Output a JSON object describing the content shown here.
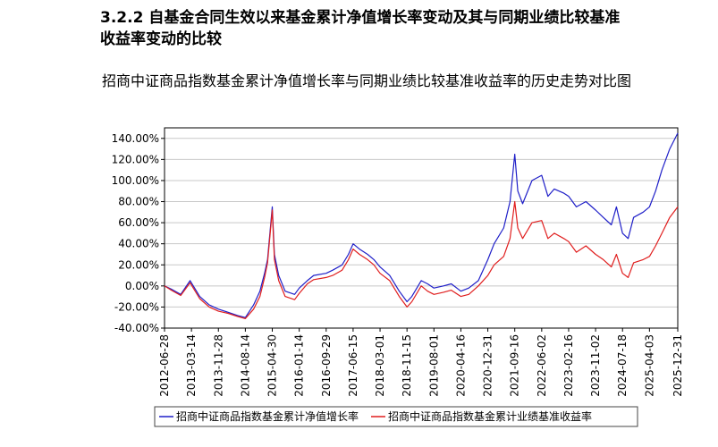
{
  "section": {
    "heading_line1": "3.2.2  自基金合同生效以来基金累计净值增长率变动及其与同期业绩比较基准",
    "heading_line2": "收益率变动的比较"
  },
  "colors": {
    "fund": "#1f1fc8",
    "benchmark": "#e01e1e",
    "grid": "#c8c8c8",
    "axis": "#000000"
  },
  "chart_data": {
    "type": "line",
    "title": "招商中证商品指数基金累计净值增长率与同期业绩比较基准收益率的历史走势对比图",
    "xlabel": "",
    "ylabel": "",
    "x_axis": {
      "type": "date",
      "min": "2012-06-28",
      "max": "2025-12-31",
      "tick_labels": [
        "2012-06-28",
        "2013-03-14",
        "2013-11-28",
        "2014-08-14",
        "2015-04-30",
        "2016-01-14",
        "2016-09-29",
        "2017-06-15",
        "2018-03-01",
        "2018-11-15",
        "2019-08-01",
        "2020-04-16",
        "2020-12-31",
        "2021-09-16",
        "2022-06-02",
        "2023-02-16",
        "2023-11-02",
        "2024-07-18",
        "2025-04-03",
        "2025-12-31"
      ]
    },
    "y_axis": {
      "min": -40,
      "max": 150,
      "unit": "%",
      "ticks": [
        -40,
        -20,
        0,
        20,
        40,
        60,
        80,
        100,
        120,
        140
      ],
      "tick_labels": [
        "-40.00%",
        "-20.00%",
        "0.00%",
        "20.00%",
        "40.00%",
        "60.00%",
        "80.00%",
        "100.00%",
        "120.00%",
        "140.00%"
      ]
    },
    "grid": "horizontal",
    "legend_position": "bottom",
    "series": [
      {
        "name": "招商中证商品指数基金累计净值增长率",
        "color": "#1f1fc8",
        "points": [
          [
            "2012-06-28",
            0
          ],
          [
            "2012-09-01",
            -3
          ],
          [
            "2012-12-01",
            -8
          ],
          [
            "2013-03-01",
            5
          ],
          [
            "2013-06-01",
            -10
          ],
          [
            "2013-09-01",
            -18
          ],
          [
            "2013-11-28",
            -22
          ],
          [
            "2014-03-01",
            -25
          ],
          [
            "2014-06-01",
            -28
          ],
          [
            "2014-08-14",
            -30
          ],
          [
            "2014-11-01",
            -18
          ],
          [
            "2015-01-01",
            -5
          ],
          [
            "2015-02-15",
            12
          ],
          [
            "2015-03-15",
            25
          ],
          [
            "2015-04-30",
            75
          ],
          [
            "2015-05-20",
            30
          ],
          [
            "2015-07-01",
            10
          ],
          [
            "2015-09-01",
            -5
          ],
          [
            "2015-12-01",
            -8
          ],
          [
            "2016-01-14",
            -2
          ],
          [
            "2016-04-01",
            5
          ],
          [
            "2016-06-01",
            10
          ],
          [
            "2016-09-29",
            12
          ],
          [
            "2016-12-01",
            15
          ],
          [
            "2017-03-01",
            20
          ],
          [
            "2017-05-01",
            30
          ],
          [
            "2017-06-15",
            40
          ],
          [
            "2017-08-15",
            35
          ],
          [
            "2017-11-01",
            30
          ],
          [
            "2018-01-01",
            25
          ],
          [
            "2018-03-01",
            18
          ],
          [
            "2018-06-01",
            10
          ],
          [
            "2018-09-01",
            -5
          ],
          [
            "2018-11-15",
            -15
          ],
          [
            "2019-01-01",
            -10
          ],
          [
            "2019-04-01",
            5
          ],
          [
            "2019-06-01",
            2
          ],
          [
            "2019-08-01",
            -2
          ],
          [
            "2019-11-01",
            0
          ],
          [
            "2020-01-15",
            2
          ],
          [
            "2020-04-16",
            -5
          ],
          [
            "2020-07-01",
            -2
          ],
          [
            "2020-10-01",
            5
          ],
          [
            "2020-12-31",
            25
          ],
          [
            "2021-03-01",
            40
          ],
          [
            "2021-06-01",
            55
          ],
          [
            "2021-08-01",
            80
          ],
          [
            "2021-09-16",
            125
          ],
          [
            "2021-10-15",
            90
          ],
          [
            "2021-12-01",
            78
          ],
          [
            "2022-03-01",
            100
          ],
          [
            "2022-06-02",
            105
          ],
          [
            "2022-08-01",
            85
          ],
          [
            "2022-10-01",
            92
          ],
          [
            "2023-01-01",
            88
          ],
          [
            "2023-02-16",
            85
          ],
          [
            "2023-05-01",
            75
          ],
          [
            "2023-08-01",
            80
          ],
          [
            "2023-11-02",
            72
          ],
          [
            "2024-01-15",
            65
          ],
          [
            "2024-04-01",
            58
          ],
          [
            "2024-05-20",
            75
          ],
          [
            "2024-07-18",
            50
          ],
          [
            "2024-09-10",
            45
          ],
          [
            "2024-11-01",
            65
          ],
          [
            "2025-02-01",
            70
          ],
          [
            "2025-04-03",
            75
          ],
          [
            "2025-06-01",
            90
          ],
          [
            "2025-08-01",
            110
          ],
          [
            "2025-10-15",
            130
          ],
          [
            "2025-12-31",
            145
          ]
        ]
      },
      {
        "name": "招商中证商品指数基金累计业绩基准收益率",
        "color": "#e01e1e",
        "points": [
          [
            "2012-06-28",
            0
          ],
          [
            "2012-09-01",
            -4
          ],
          [
            "2012-12-01",
            -9
          ],
          [
            "2013-03-01",
            3
          ],
          [
            "2013-06-01",
            -12
          ],
          [
            "2013-09-01",
            -20
          ],
          [
            "2013-11-28",
            -24
          ],
          [
            "2014-03-01",
            -26
          ],
          [
            "2014-06-01",
            -29
          ],
          [
            "2014-08-14",
            -31
          ],
          [
            "2014-11-01",
            -22
          ],
          [
            "2015-01-01",
            -10
          ],
          [
            "2015-02-15",
            8
          ],
          [
            "2015-03-15",
            22
          ],
          [
            "2015-04-30",
            72
          ],
          [
            "2015-05-20",
            25
          ],
          [
            "2015-07-01",
            5
          ],
          [
            "2015-09-01",
            -10
          ],
          [
            "2015-12-01",
            -13
          ],
          [
            "2016-01-14",
            -7
          ],
          [
            "2016-04-01",
            2
          ],
          [
            "2016-06-01",
            6
          ],
          [
            "2016-09-29",
            8
          ],
          [
            "2016-12-01",
            10
          ],
          [
            "2017-03-01",
            15
          ],
          [
            "2017-05-01",
            25
          ],
          [
            "2017-06-15",
            35
          ],
          [
            "2017-08-15",
            30
          ],
          [
            "2017-11-01",
            25
          ],
          [
            "2018-01-01",
            20
          ],
          [
            "2018-03-01",
            12
          ],
          [
            "2018-06-01",
            5
          ],
          [
            "2018-09-01",
            -10
          ],
          [
            "2018-11-15",
            -20
          ],
          [
            "2019-01-01",
            -15
          ],
          [
            "2019-04-01",
            0
          ],
          [
            "2019-06-01",
            -5
          ],
          [
            "2019-08-01",
            -8
          ],
          [
            "2019-11-01",
            -6
          ],
          [
            "2020-01-15",
            -4
          ],
          [
            "2020-04-16",
            -10
          ],
          [
            "2020-07-01",
            -8
          ],
          [
            "2020-10-01",
            0
          ],
          [
            "2020-12-31",
            10
          ],
          [
            "2021-03-01",
            20
          ],
          [
            "2021-06-01",
            28
          ],
          [
            "2021-08-01",
            45
          ],
          [
            "2021-09-16",
            80
          ],
          [
            "2021-10-15",
            55
          ],
          [
            "2021-12-01",
            45
          ],
          [
            "2022-03-01",
            60
          ],
          [
            "2022-06-02",
            62
          ],
          [
            "2022-08-01",
            45
          ],
          [
            "2022-10-01",
            50
          ],
          [
            "2023-01-01",
            45
          ],
          [
            "2023-02-16",
            42
          ],
          [
            "2023-05-01",
            32
          ],
          [
            "2023-08-01",
            38
          ],
          [
            "2023-11-02",
            30
          ],
          [
            "2024-01-15",
            25
          ],
          [
            "2024-04-01",
            18
          ],
          [
            "2024-05-20",
            30
          ],
          [
            "2024-07-18",
            12
          ],
          [
            "2024-09-10",
            8
          ],
          [
            "2024-11-01",
            22
          ],
          [
            "2025-02-01",
            25
          ],
          [
            "2025-04-03",
            28
          ],
          [
            "2025-06-01",
            38
          ],
          [
            "2025-08-01",
            50
          ],
          [
            "2025-10-15",
            65
          ],
          [
            "2025-12-31",
            75
          ]
        ]
      }
    ]
  }
}
